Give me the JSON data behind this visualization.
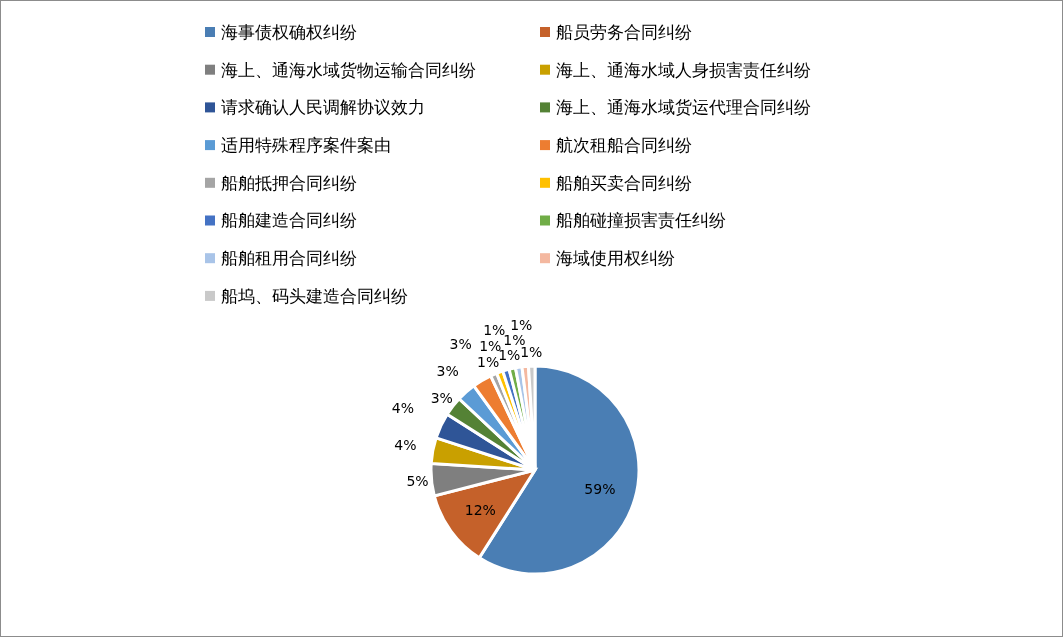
{
  "chart_data": {
    "type": "pie",
    "categories": [
      "海事债权确权纠纷",
      "船员劳务合同纠纷",
      "海上、通海水域货物运输合同纠纷",
      "海上、通海水域人身损害责任纠纷",
      "请求确认人民调解协议效力",
      "海上、通海水域货运代理合同纠纷",
      "适用特殊程序案件案由",
      "航次租船合同纠纷",
      "船舶抵押合同纠纷",
      "船舶买卖合同纠纷",
      "船舶建造合同纠纷",
      "船舶碰撞损害责任纠纷",
      "船舶租用合同纠纷",
      "海域使用权纠纷",
      "船坞、码头建造合同纠纷"
    ],
    "values": [
      59,
      12,
      5,
      4,
      4,
      3,
      3,
      3,
      1,
      1,
      1,
      1,
      1,
      1,
      1
    ],
    "colors": [
      "#4a7eb4",
      "#c5612a",
      "#7f7f7f",
      "#c9a000",
      "#2f5597",
      "#548235",
      "#5b9bd5",
      "#ed7d31",
      "#a5a5a5",
      "#ffc000",
      "#4472c4",
      "#70ad47",
      "#a9c4e8",
      "#f4b8a0",
      "#c9c9c9"
    ],
    "value_labels": [
      "59%",
      "12%",
      "5%",
      "4%",
      "4%",
      "3%",
      "3%",
      "3%",
      "1%",
      "1%",
      "1%",
      "1%",
      "1%",
      "1%",
      "1%"
    ],
    "legend": "top"
  }
}
